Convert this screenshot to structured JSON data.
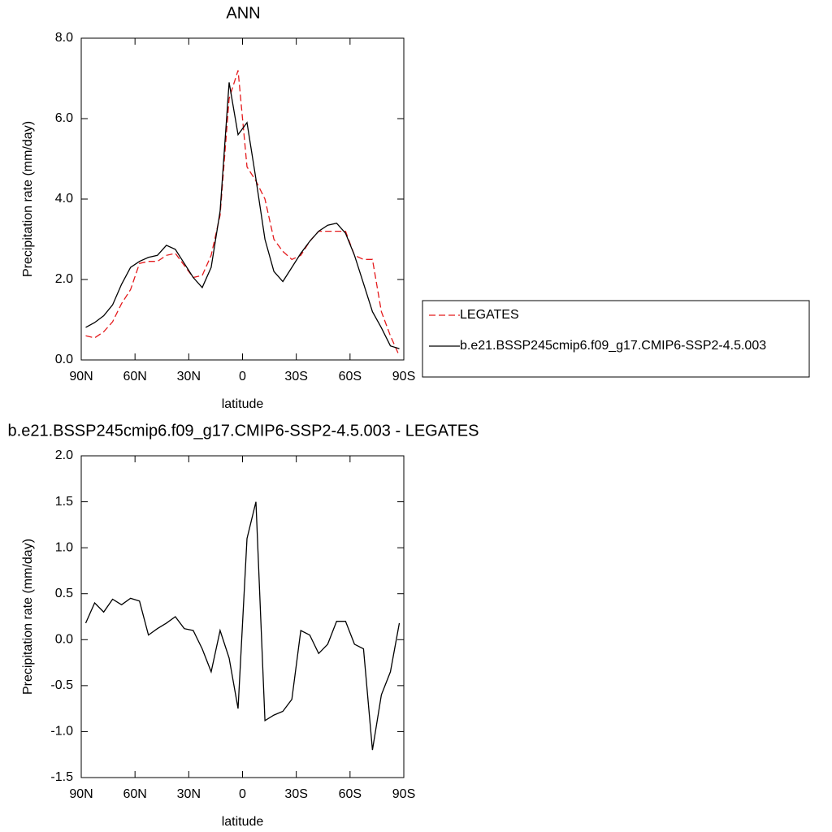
{
  "chart_data": [
    {
      "type": "line",
      "title": "ANN",
      "xlabel": "latitude",
      "ylabel": "Precipitation rate (mm/day)",
      "x": [
        87.5,
        82.5,
        77.5,
        72.5,
        67.5,
        62.5,
        57.5,
        52.5,
        47.5,
        42.5,
        37.5,
        32.5,
        27.5,
        22.5,
        17.5,
        12.5,
        7.5,
        2.5,
        -2.5,
        -7.5,
        -12.5,
        -17.5,
        -22.5,
        -27.5,
        -32.5,
        -37.5,
        -42.5,
        -47.5,
        -52.5,
        -57.5,
        -62.5,
        -67.5,
        -72.5,
        -77.5,
        -82.5,
        -87.5
      ],
      "xlim": [
        90,
        -90
      ],
      "xticks": [
        {
          "value": 90,
          "label": "90N"
        },
        {
          "value": 60,
          "label": "60N"
        },
        {
          "value": 30,
          "label": "30N"
        },
        0,
        {
          "value": -30,
          "label": "30S"
        },
        {
          "value": -60,
          "label": "60S"
        },
        {
          "value": -90,
          "label": "90S"
        }
      ],
      "ylim": [
        0,
        8
      ],
      "yticks": [
        {
          "value": 0,
          "label": "0.0"
        },
        {
          "value": 2,
          "label": "2.0"
        },
        {
          "value": 4,
          "label": "4.0"
        },
        {
          "value": 6,
          "label": "6.0"
        },
        {
          "value": 8,
          "label": "8.0"
        }
      ],
      "legend": "right",
      "series": [
        {
          "name": "LEGATES",
          "color": "#e41a1c",
          "line_style": "dashed",
          "values": [
            0.6,
            0.55,
            0.7,
            0.95,
            1.4,
            1.75,
            2.4,
            2.45,
            2.45,
            2.6,
            2.65,
            2.35,
            2.05,
            2.1,
            2.6,
            3.6,
            6.5,
            7.2,
            4.8,
            4.45,
            4.0,
            3.0,
            2.7,
            2.5,
            2.6,
            2.95,
            3.2,
            3.2,
            3.2,
            3.2,
            2.6,
            2.5,
            2.5,
            1.2,
            0.6,
            0.1
          ]
        },
        {
          "name": "b.e21.BSSP245cmip6.f09_g17.CMIP6-SSP2-4.5.003",
          "color": "#000000",
          "line_style": "solid",
          "values": [
            0.81,
            0.93,
            1.1,
            1.37,
            1.88,
            2.3,
            2.45,
            2.55,
            2.6,
            2.85,
            2.75,
            2.4,
            2.05,
            1.8,
            2.3,
            3.7,
            6.9,
            5.6,
            5.9,
            4.5,
            3.0,
            2.2,
            1.95,
            2.3,
            2.65,
            2.95,
            3.2,
            3.35,
            3.4,
            3.15,
            2.6,
            1.9,
            1.2,
            0.8,
            0.35,
            0.28
          ]
        }
      ]
    },
    {
      "type": "line",
      "title": "b.e21.BSSP245cmip6.f09_g17.CMIP6-SSP2-4.5.003 - LEGATES",
      "xlabel": "latitude",
      "ylabel": "Precipitation rate (mm/day)",
      "x": [
        87.5,
        82.5,
        77.5,
        72.5,
        67.5,
        62.5,
        57.5,
        52.5,
        47.5,
        42.5,
        37.5,
        32.5,
        27.5,
        22.5,
        17.5,
        12.5,
        7.5,
        2.5,
        -2.5,
        -7.5,
        -12.5,
        -17.5,
        -22.5,
        -27.5,
        -32.5,
        -37.5,
        -42.5,
        -47.5,
        -52.5,
        -57.5,
        -62.5,
        -67.5,
        -72.5,
        -77.5,
        -82.5,
        -87.5
      ],
      "xlim": [
        90,
        -90
      ],
      "xticks": [
        {
          "value": 90,
          "label": "90N"
        },
        {
          "value": 60,
          "label": "60N"
        },
        {
          "value": 30,
          "label": "30N"
        },
        0,
        {
          "value": -30,
          "label": "30S"
        },
        {
          "value": -60,
          "label": "60S"
        },
        {
          "value": -90,
          "label": "90S"
        }
      ],
      "ylim": [
        -1.5,
        2
      ],
      "yticks": [
        -1.5,
        {
          "value": -1,
          "label": "-1.0"
        },
        -0.5,
        {
          "value": 0,
          "label": "0.0"
        },
        0.5,
        {
          "value": 1,
          "label": "1.0"
        },
        1.5,
        {
          "value": 2,
          "label": "2.0"
        }
      ],
      "series": [
        {
          "color": "#000000",
          "line_style": "solid",
          "values": [
            0.18,
            0.4,
            0.3,
            0.44,
            0.38,
            0.45,
            0.42,
            0.05,
            0.12,
            0.18,
            0.25,
            0.12,
            0.1,
            -0.1,
            -0.35,
            0.1,
            -0.2,
            -0.75,
            1.1,
            1.5,
            -0.88,
            -0.82,
            -0.78,
            -0.65,
            0.1,
            0.05,
            -0.15,
            -0.05,
            0.2,
            0.2,
            -0.05,
            -0.1,
            -1.2,
            -0.6,
            -0.35,
            0.18
          ]
        }
      ]
    }
  ]
}
